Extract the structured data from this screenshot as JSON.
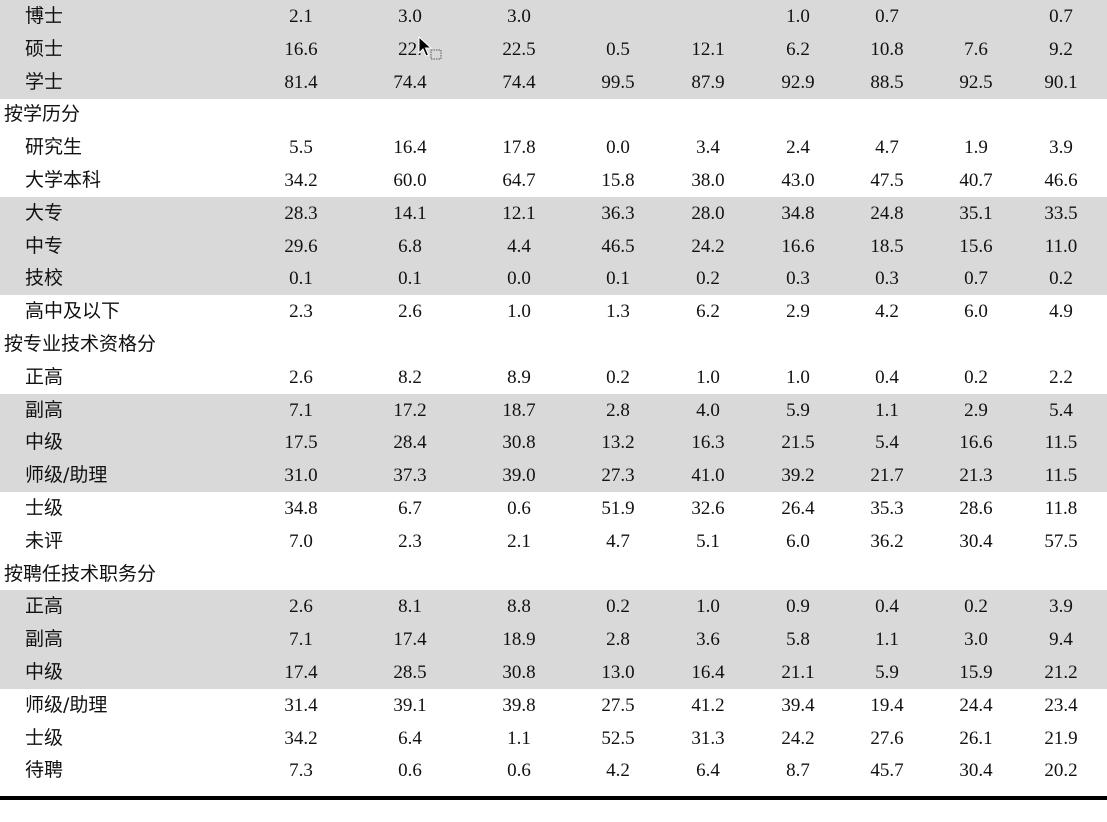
{
  "table": {
    "rows": [
      {
        "kind": "data",
        "shaded": true,
        "label": "博士",
        "values": [
          "2.1",
          "3.0",
          "3.0",
          "",
          "",
          "1.0",
          "0.7",
          "",
          "0.7"
        ]
      },
      {
        "kind": "data",
        "shaded": true,
        "label": "硕士",
        "values": [
          "16.6",
          "22.",
          "22.5",
          "0.5",
          "12.1",
          "6.2",
          "10.8",
          "7.6",
          "9.2"
        ]
      },
      {
        "kind": "data",
        "shaded": true,
        "label": "学士",
        "values": [
          "81.4",
          "74.4",
          "74.4",
          "99.5",
          "87.9",
          "92.9",
          "88.5",
          "92.5",
          "90.1"
        ]
      },
      {
        "kind": "section",
        "shaded": false,
        "label": "按学历分"
      },
      {
        "kind": "data",
        "shaded": false,
        "label": "研究生",
        "values": [
          "5.5",
          "16.4",
          "17.8",
          "0.0",
          "3.4",
          "2.4",
          "4.7",
          "1.9",
          "3.9"
        ]
      },
      {
        "kind": "data",
        "shaded": false,
        "label": "大学本科",
        "values": [
          "34.2",
          "60.0",
          "64.7",
          "15.8",
          "38.0",
          "43.0",
          "47.5",
          "40.7",
          "46.6"
        ]
      },
      {
        "kind": "data",
        "shaded": true,
        "label": "大专",
        "values": [
          "28.3",
          "14.1",
          "12.1",
          "36.3",
          "28.0",
          "34.8",
          "24.8",
          "35.1",
          "33.5"
        ]
      },
      {
        "kind": "data",
        "shaded": true,
        "label": "中专",
        "values": [
          "29.6",
          "6.8",
          "4.4",
          "46.5",
          "24.2",
          "16.6",
          "18.5",
          "15.6",
          "11.0"
        ]
      },
      {
        "kind": "data",
        "shaded": true,
        "label": "技校",
        "values": [
          "0.1",
          "0.1",
          "0.0",
          "0.1",
          "0.2",
          "0.3",
          "0.3",
          "0.7",
          "0.2"
        ]
      },
      {
        "kind": "data",
        "shaded": false,
        "label": "高中及以下",
        "values": [
          "2.3",
          "2.6",
          "1.0",
          "1.3",
          "6.2",
          "2.9",
          "4.2",
          "6.0",
          "4.9"
        ]
      },
      {
        "kind": "section",
        "shaded": false,
        "label": "按专业技术资格分"
      },
      {
        "kind": "data",
        "shaded": false,
        "label": "正高",
        "values": [
          "2.6",
          "8.2",
          "8.9",
          "0.2",
          "1.0",
          "1.0",
          "0.4",
          "0.2",
          "2.2"
        ]
      },
      {
        "kind": "data",
        "shaded": true,
        "label": "副高",
        "values": [
          "7.1",
          "17.2",
          "18.7",
          "2.8",
          "4.0",
          "5.9",
          "1.1",
          "2.9",
          "5.4"
        ]
      },
      {
        "kind": "data",
        "shaded": true,
        "label": "中级",
        "values": [
          "17.5",
          "28.4",
          "30.8",
          "13.2",
          "16.3",
          "21.5",
          "5.4",
          "16.6",
          "11.5"
        ]
      },
      {
        "kind": "data",
        "shaded": true,
        "label": "师级/助理",
        "values": [
          "31.0",
          "37.3",
          "39.0",
          "27.3",
          "41.0",
          "39.2",
          "21.7",
          "21.3",
          "11.5"
        ]
      },
      {
        "kind": "data",
        "shaded": false,
        "label": "士级",
        "values": [
          "34.8",
          "6.7",
          "0.6",
          "51.9",
          "32.6",
          "26.4",
          "35.3",
          "28.6",
          "11.8"
        ]
      },
      {
        "kind": "data",
        "shaded": false,
        "label": "未评",
        "values": [
          "7.0",
          "2.3",
          "2.1",
          "4.7",
          "5.1",
          "6.0",
          "36.2",
          "30.4",
          "57.5"
        ]
      },
      {
        "kind": "section",
        "shaded": false,
        "label": "按聘任技术职务分"
      },
      {
        "kind": "data",
        "shaded": true,
        "label": "正高",
        "values": [
          "2.6",
          "8.1",
          "8.8",
          "0.2",
          "1.0",
          "0.9",
          "0.4",
          "0.2",
          "3.9"
        ]
      },
      {
        "kind": "data",
        "shaded": true,
        "label": "副高",
        "values": [
          "7.1",
          "17.4",
          "18.9",
          "2.8",
          "3.6",
          "5.8",
          "1.1",
          "3.0",
          "9.4"
        ]
      },
      {
        "kind": "data",
        "shaded": true,
        "label": "中级",
        "values": [
          "17.4",
          "28.5",
          "30.8",
          "13.0",
          "16.4",
          "21.1",
          "5.9",
          "15.9",
          "21.2"
        ]
      },
      {
        "kind": "data",
        "shaded": false,
        "label": "师级/助理",
        "values": [
          "31.4",
          "39.1",
          "39.8",
          "27.5",
          "41.2",
          "39.4",
          "19.4",
          "24.4",
          "23.4"
        ]
      },
      {
        "kind": "data",
        "shaded": false,
        "label": "士级",
        "values": [
          "34.2",
          "6.4",
          "1.1",
          "52.5",
          "31.3",
          "24.2",
          "27.6",
          "26.1",
          "21.9"
        ]
      },
      {
        "kind": "data",
        "shaded": false,
        "label": "待聘",
        "values": [
          "7.3",
          "0.6",
          "0.6",
          "4.2",
          "6.4",
          "8.7",
          "45.7",
          "30.4",
          "20.2"
        ]
      }
    ]
  },
  "colors": {
    "row_shade": "#d9d9d9",
    "text": "#111111",
    "rule": "#000000"
  },
  "cursor": {
    "icon": "mouse-pointer-with-selection-icon"
  }
}
